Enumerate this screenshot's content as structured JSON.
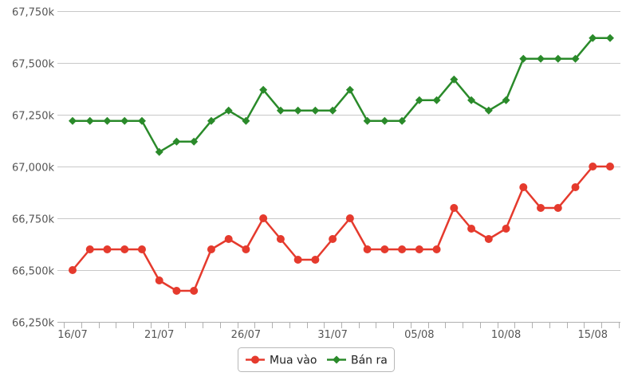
{
  "chart_data": {
    "type": "line",
    "title": "",
    "xlabel": "",
    "ylabel": "",
    "ylim": [
      66250,
      67750
    ],
    "yticks": [
      66250,
      66500,
      66750,
      67000,
      67250,
      67500,
      67750
    ],
    "ytick_labels": [
      "66,250k",
      "66,500k",
      "66,750k",
      "67,000k",
      "67,250k",
      "67,500k",
      "67,750k"
    ],
    "x": [
      "16/07",
      "17/07",
      "18/07",
      "19/07",
      "20/07",
      "21/07",
      "22/07",
      "23/07",
      "24/07",
      "25/07",
      "26/07",
      "27/07",
      "28/07",
      "29/07",
      "30/07",
      "31/07",
      "01/08",
      "02/08",
      "03/08",
      "04/08",
      "05/08",
      "06/08",
      "07/08",
      "08/08",
      "09/08",
      "10/08",
      "11/08",
      "12/08",
      "13/08",
      "14/08",
      "15/08",
      "16/08"
    ],
    "xtick_labels": [
      "16/07",
      "21/07",
      "26/07",
      "31/07",
      "05/08",
      "10/08",
      "15/08"
    ],
    "grid": true,
    "legend_position": "bottom-center",
    "series": [
      {
        "name": "Mua vào",
        "color": "#e53a2d",
        "marker": "circle",
        "values": [
          66500,
          66600,
          66600,
          66600,
          66600,
          66450,
          66400,
          66400,
          66600,
          66650,
          66600,
          66750,
          66650,
          66550,
          66550,
          66650,
          66750,
          66600,
          66600,
          66600,
          66600,
          66600,
          66800,
          66700,
          66650,
          66700,
          66900,
          66800,
          66800,
          66900,
          67000,
          67000
        ]
      },
      {
        "name": "Bán ra",
        "color": "#2a8a2a",
        "marker": "diamond",
        "values": [
          67220,
          67220,
          67220,
          67220,
          67220,
          67070,
          67120,
          67120,
          67220,
          67270,
          67220,
          67370,
          67270,
          67270,
          67270,
          67270,
          67370,
          67220,
          67220,
          67220,
          67320,
          67320,
          67420,
          67320,
          67270,
          67320,
          67520,
          67520,
          67520,
          67520,
          67620,
          67620
        ]
      }
    ]
  }
}
